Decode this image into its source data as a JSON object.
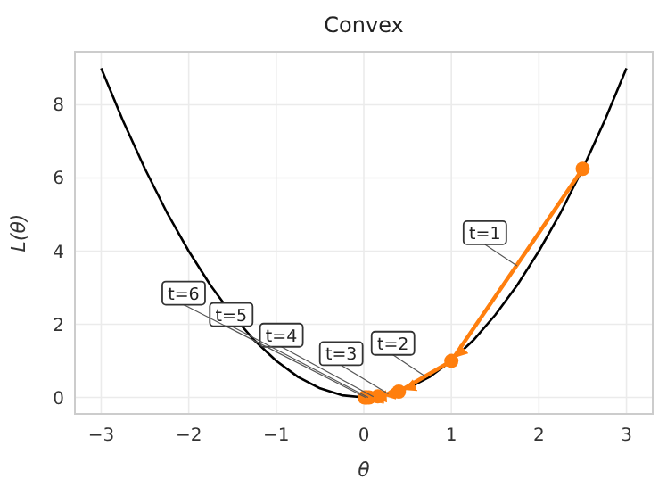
{
  "chart_data": {
    "type": "line",
    "title": "Convex",
    "xlabel": "θ",
    "ylabel": "L(θ)",
    "xlim": [
      -3.3,
      3.3
    ],
    "ylim": [
      -0.45,
      9.45
    ],
    "xticks": [
      {
        "value": -3,
        "label": "−3"
      },
      {
        "value": -2,
        "label": "−2"
      },
      {
        "value": -1,
        "label": "−1"
      },
      0,
      1,
      2,
      3
    ],
    "yticks": [
      0,
      2,
      4,
      6,
      8
    ],
    "grid": true,
    "series": [
      {
        "color": "#000000",
        "marker": "none",
        "x": [
          -3,
          -2.75,
          -2.5,
          -2.25,
          -2,
          -1.75,
          -1.5,
          -1.25,
          -1,
          -0.75,
          -0.5,
          -0.25,
          0,
          0.25,
          0.5,
          0.75,
          1,
          1.25,
          1.5,
          1.75,
          2,
          2.25,
          2.5,
          2.75,
          3
        ],
        "values": [
          9,
          7.56,
          6.25,
          5.06,
          4,
          3.06,
          2.25,
          1.56,
          1,
          0.56,
          0.25,
          0.06,
          0,
          0.06,
          0.25,
          0.56,
          1,
          1.56,
          2.25,
          3.06,
          4,
          5.06,
          6.25,
          7.56,
          9
        ]
      },
      {
        "color": "#ff7f0e",
        "marker": "circle",
        "x": [
          2.5,
          1,
          0.4,
          0.16,
          0.06,
          0.03,
          0.01
        ],
        "values": [
          6.25,
          1,
          0.16,
          0.03,
          0,
          0,
          0
        ]
      }
    ],
    "annotations": [
      {
        "text": "t=1",
        "x": 1.75,
        "y": 3.6
      },
      {
        "text": "t=2",
        "x": 0.7,
        "y": 0.58
      },
      {
        "text": "t=3",
        "x": 0.28,
        "y": 0.1
      },
      {
        "text": "t=4",
        "x": 0.11,
        "y": 0.02
      },
      {
        "text": "t=5",
        "x": 0.05,
        "y": 0
      },
      {
        "text": "t=6",
        "x": 0.02,
        "y": 0
      }
    ]
  }
}
